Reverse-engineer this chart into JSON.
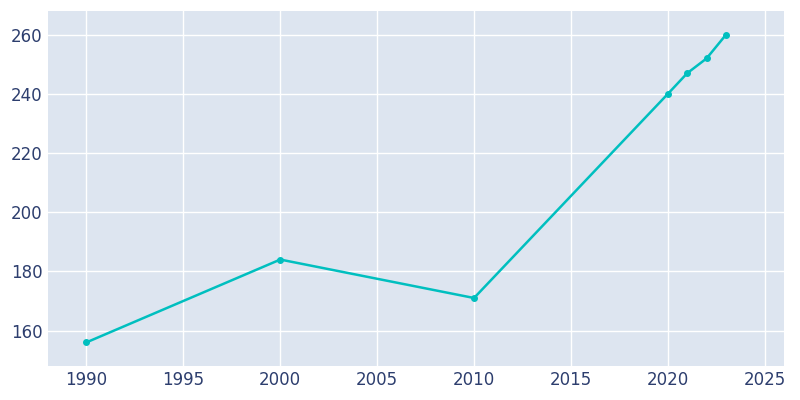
{
  "years": [
    1990,
    2000,
    2010,
    2020,
    2021,
    2022,
    2023
  ],
  "population": [
    156,
    184,
    171,
    240,
    247,
    252,
    260
  ],
  "line_color": "#00BFBF",
  "marker": "o",
  "marker_size": 4,
  "bg_color": "#dde5f0",
  "fig_bg_color": "#ffffff",
  "grid_color": "#ffffff",
  "xlim": [
    1988,
    2026
  ],
  "ylim": [
    148,
    268
  ],
  "xticks": [
    1990,
    1995,
    2000,
    2005,
    2010,
    2015,
    2020,
    2025
  ],
  "yticks": [
    160,
    180,
    200,
    220,
    240,
    260
  ],
  "tick_color": "#2d3e6e",
  "tick_fontsize": 12,
  "line_width": 1.8
}
